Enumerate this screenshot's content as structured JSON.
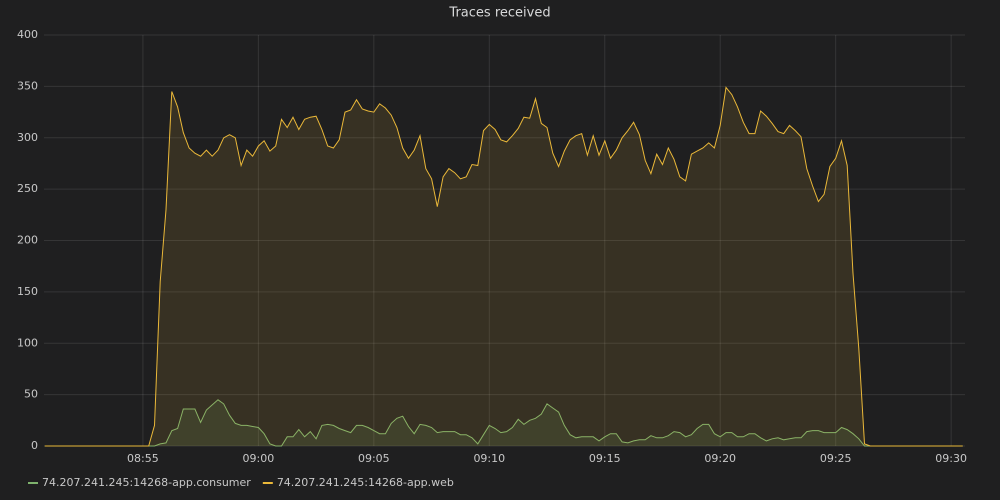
{
  "chart_data": {
    "type": "area",
    "title": "Traces received",
    "x": [
      "08:50:45",
      "08:55:15",
      "08:55:30",
      "08:55:45",
      "08:56:00",
      "08:56:15",
      "08:56:30",
      "08:56:45",
      "08:57:00",
      "08:57:15",
      "08:57:30",
      "08:57:45",
      "08:58:00",
      "08:58:15",
      "08:58:30",
      "08:58:45",
      "08:59:00",
      "08:59:15",
      "08:59:30",
      "08:59:45",
      "09:00:00",
      "09:00:15",
      "09:00:30",
      "09:00:45",
      "09:01:00",
      "09:01:15",
      "09:01:30",
      "09:01:45",
      "09:02:00",
      "09:02:15",
      "09:02:30",
      "09:02:45",
      "09:03:00",
      "09:03:15",
      "09:03:30",
      "09:03:45",
      "09:04:00",
      "09:04:15",
      "09:04:30",
      "09:04:45",
      "09:05:00",
      "09:05:15",
      "09:05:30",
      "09:05:45",
      "09:06:00",
      "09:06:15",
      "09:06:30",
      "09:06:45",
      "09:07:00",
      "09:07:15",
      "09:07:30",
      "09:07:45",
      "09:08:00",
      "09:08:15",
      "09:08:30",
      "09:08:45",
      "09:09:00",
      "09:09:15",
      "09:09:30",
      "09:09:45",
      "09:10:00",
      "09:10:15",
      "09:10:30",
      "09:10:45",
      "09:11:00",
      "09:11:15",
      "09:11:30",
      "09:11:45",
      "09:12:00",
      "09:12:15",
      "09:12:30",
      "09:12:45",
      "09:13:00",
      "09:13:15",
      "09:13:30",
      "09:13:45",
      "09:14:00",
      "09:14:15",
      "09:14:30",
      "09:14:45",
      "09:15:00",
      "09:15:15",
      "09:15:30",
      "09:15:45",
      "09:16:00",
      "09:16:15",
      "09:16:30",
      "09:16:45",
      "09:17:00",
      "09:17:15",
      "09:17:30",
      "09:17:45",
      "09:18:00",
      "09:18:15",
      "09:18:30",
      "09:18:45",
      "09:19:00",
      "09:19:15",
      "09:19:30",
      "09:19:45",
      "09:20:00",
      "09:20:15",
      "09:20:30",
      "09:20:45",
      "09:21:00",
      "09:21:15",
      "09:21:30",
      "09:21:45",
      "09:22:00",
      "09:22:15",
      "09:22:30",
      "09:22:45",
      "09:23:00",
      "09:23:15",
      "09:23:30",
      "09:23:45",
      "09:24:00",
      "09:24:15",
      "09:24:30",
      "09:24:45",
      "09:25:00",
      "09:25:15",
      "09:25:30",
      "09:25:45",
      "09:26:00",
      "09:26:15",
      "09:26:30",
      "09:30:30"
    ],
    "series": [
      {
        "name": "74.207.241.245:14268-app.consumer",
        "color": "#7eb26d",
        "values": [
          0,
          0,
          0,
          2,
          3,
          15,
          17,
          36,
          36,
          36,
          23,
          35,
          40,
          45,
          41,
          30,
          22,
          20,
          20,
          19,
          18,
          12,
          2,
          0,
          0,
          9,
          9,
          16,
          9,
          14,
          7,
          20,
          21,
          20,
          17,
          15,
          13,
          20,
          20,
          18,
          15,
          12,
          12,
          22,
          27,
          29,
          19,
          12,
          21,
          20,
          18,
          13,
          14,
          14,
          14,
          11,
          11,
          8,
          2,
          11,
          20,
          17,
          13,
          14,
          18,
          26,
          21,
          25,
          27,
          31,
          41,
          37,
          33,
          20,
          11,
          8,
          9,
          9,
          9,
          5,
          9,
          12,
          12,
          4,
          3,
          5,
          6,
          6,
          10,
          8,
          8,
          10,
          14,
          13,
          9,
          11,
          17,
          21,
          21,
          12,
          9,
          13,
          13,
          9,
          9,
          12,
          12,
          8,
          5,
          7,
          8,
          6,
          7,
          8,
          8,
          14,
          15,
          15,
          13,
          13,
          13,
          18,
          16,
          12,
          7,
          0,
          0,
          0
        ]
      },
      {
        "name": "74.207.241.245:14268-app.web",
        "color": "#eab839",
        "values": [
          0,
          0,
          20,
          160,
          230,
          345,
          330,
          305,
          290,
          285,
          282,
          288,
          282,
          288,
          300,
          303,
          300,
          273,
          288,
          282,
          292,
          297,
          287,
          292,
          318,
          310,
          320,
          308,
          318,
          320,
          321,
          308,
          292,
          290,
          298,
          325,
          327,
          337,
          328,
          326,
          325,
          333,
          329,
          322,
          310,
          290,
          280,
          288,
          302,
          270,
          260,
          233,
          262,
          270,
          266,
          260,
          262,
          274,
          273,
          307,
          313,
          308,
          298,
          296,
          302,
          309,
          320,
          319,
          338,
          314,
          310,
          285,
          272,
          287,
          298,
          302,
          304,
          283,
          302,
          283,
          297,
          280,
          288,
          300,
          307,
          315,
          303,
          278,
          265,
          284,
          274,
          290,
          279,
          262,
          258,
          284,
          287,
          290,
          295,
          290,
          312,
          349,
          342,
          330,
          315,
          304,
          304,
          326,
          321,
          314,
          306,
          304,
          312,
          307,
          301,
          270,
          253,
          238,
          245,
          272,
          280,
          297,
          273,
          168,
          95,
          2,
          0,
          0
        ]
      }
    ],
    "xlim": [
      "08:50:43",
      "09:30:36"
    ],
    "xticks": [
      "08:55",
      "09:00",
      "09:05",
      "09:10",
      "09:15",
      "09:20",
      "09:25",
      "09:30"
    ],
    "ylim": [
      0,
      400
    ],
    "yticks": [
      0,
      50,
      100,
      150,
      200,
      250,
      300,
      350,
      400
    ],
    "grid": true,
    "legend": "bottom-left"
  }
}
